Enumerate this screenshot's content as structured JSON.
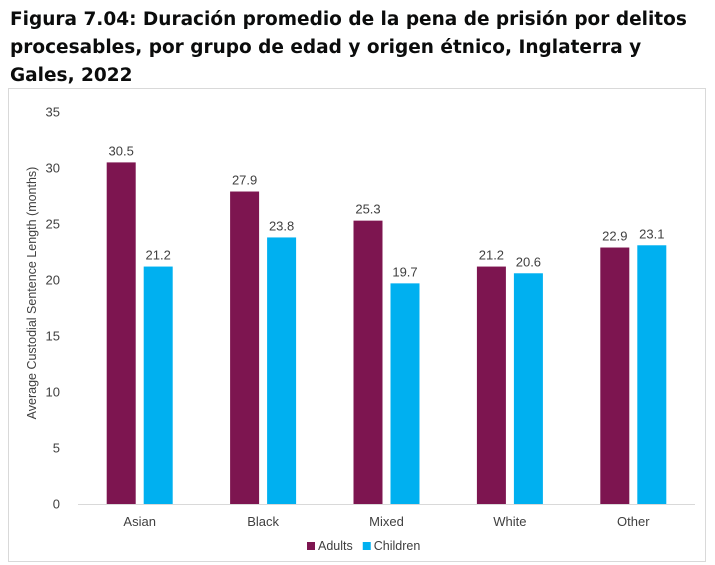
{
  "page": {
    "title": "Figura 7.04: Duración promedio de la pena de prisión por delitos procesables, por grupo de edad y origen étnico, Inglaterra y Gales, 2022"
  },
  "chart_data": {
    "type": "bar",
    "title": "Figura 7.04: Duración promedio de la pena de prisión por delitos procesables, por grupo de edad y origen étnico, Inglaterra y Gales, 2022",
    "xlabel": "",
    "ylabel": "Average Custodial Sentence Length (months)",
    "categories": [
      "Asian",
      "Black",
      "Mixed",
      "White",
      "Other"
    ],
    "series": [
      {
        "name": "Adults",
        "color": "#7d1550",
        "values": [
          30.5,
          27.9,
          25.3,
          21.2,
          22.9
        ]
      },
      {
        "name": "Children",
        "color": "#00b0f0",
        "values": [
          21.2,
          23.8,
          19.7,
          20.6,
          23.1
        ]
      }
    ],
    "ylim": [
      0,
      35
    ],
    "yticks": [
      0,
      5,
      10,
      15,
      20,
      25,
      30,
      35
    ],
    "grid": false,
    "legend": "bottom-center"
  }
}
